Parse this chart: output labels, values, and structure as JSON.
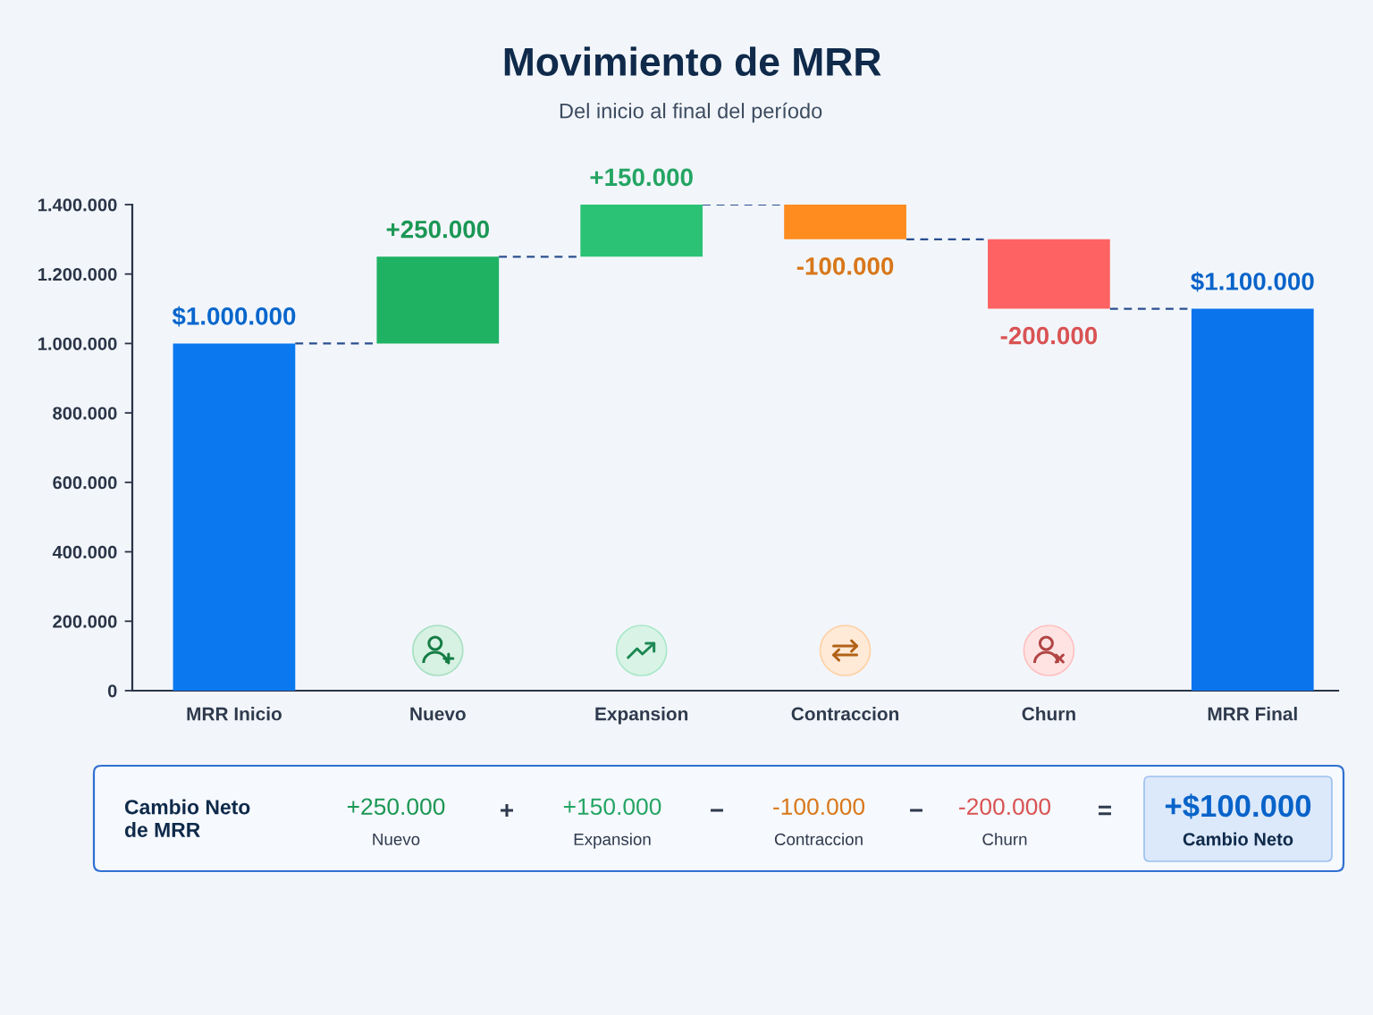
{
  "chart_data": {
    "type": "bar",
    "title": "Movimiento de MRR",
    "subtitle": "Del inicio al final del período",
    "categories": [
      "MRR Inicio",
      "Nuevo",
      "Expansion",
      "Contraccion",
      "Churn",
      "MRR Final"
    ],
    "values": [
      1000000,
      250000,
      150000,
      -100000,
      -200000,
      1100000
    ],
    "base": [
      0,
      1000000,
      1250000,
      1400000,
      1300000,
      0
    ],
    "colors": [
      "#0b78f0",
      "#20b263",
      "#2bc276",
      "#fe8c1f",
      "#ff6262",
      "#0a74ec"
    ],
    "value_labels": [
      "$1.000.000",
      "+250.000",
      "+150.000",
      "-100.000",
      "-200.000",
      "$1.100.000"
    ],
    "ylim": [
      0,
      1400000
    ],
    "yticks": [
      0,
      {
        "value": 200000,
        "label": "200.000"
      },
      {
        "value": 400000,
        "label": "400.000"
      },
      {
        "value": 600000,
        "label": "600.000"
      },
      {
        "value": 800000,
        "label": "800.000"
      },
      {
        "value": 1000000,
        "label": "1.000.000"
      },
      {
        "value": 1200000,
        "label": "1.200.000"
      },
      {
        "value": 1400000,
        "label": "1.400.000"
      }
    ],
    "annotations": [
      "Cambio Neto\nde MRR",
      "+250.000",
      "Nuevo",
      "+",
      "+150.000",
      "Expansion",
      "−",
      "-100.000",
      "Contraccion",
      "−",
      "-200.000",
      "Churn",
      "=",
      "+$100.000",
      "Cambio Neto"
    ]
  }
}
